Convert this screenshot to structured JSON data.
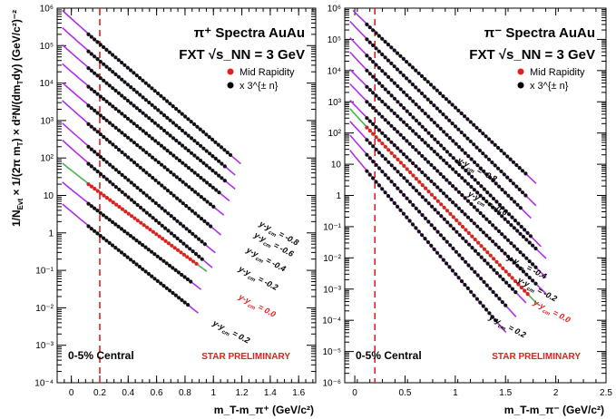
{
  "figure": {
    "ylabel_text": "1/N_Evt × 1/(2π m_T) × d²N/(dm_T dy)",
    "ylabel_unit": "(GeV/c²)⁻²",
    "dashed_line_color": "#e02020"
  },
  "chart_data": [
    {
      "type": "scatter",
      "title_line1": "π⁺ Spectra AuAu",
      "title_line2": "FXT √s_NN = 3 GeV",
      "xlabel": "m_T-m_π⁺ (GeV/c²)",
      "ylabel": "1/N_Evt × 1/(2π m_T) × d²N/(dm_T dy) (GeV/c²)⁻²",
      "xlim": [
        -0.1,
        1.72
      ],
      "ylim": [
        0.0001,
        1000000
      ],
      "yscale": "log",
      "x_ticks": [
        "0",
        "0.2",
        "0.4",
        "0.6",
        "0.8",
        "1",
        "1.2",
        "1.4",
        "1.6"
      ],
      "x_tick_values": [
        0,
        0.2,
        0.4,
        0.6,
        0.8,
        1.0,
        1.2,
        1.4,
        1.6
      ],
      "y_ticks": [
        "10⁻⁴",
        "10⁻³",
        "10⁻²",
        "10⁻¹",
        "1",
        "10",
        "10²",
        "10³",
        "10⁴",
        "10⁵",
        "10⁶"
      ],
      "y_tick_values": [
        0.0001,
        0.001,
        0.01,
        0.1,
        1,
        10,
        100,
        1000,
        10000,
        100000,
        1000000
      ],
      "dashed_x": 0.2,
      "legend": [
        {
          "label": "Mid Rapidity",
          "color": "#e02020"
        },
        {
          "label": "x 3^{± n}",
          "color": "#000000"
        }
      ],
      "annotation_central": "0-5% Central",
      "annotation_prelim": "STAR PRELIMINARY",
      "series": [
        {
          "label": "y-y_cm = -0.8",
          "mid": false,
          "x_start": 0.12,
          "x_end": 1.12,
          "y_start": 200000,
          "y_end": 120
        },
        {
          "label": "y-y_cm = -0.7",
          "mid": false,
          "x_start": 0.12,
          "x_end": 1.08,
          "y_start": 70000,
          "y_end": 60
        },
        {
          "label": "y-y_cm = -0.6",
          "mid": false,
          "x_start": 0.12,
          "x_end": 1.08,
          "y_start": 25000,
          "y_end": 25
        },
        {
          "label": "y-y_cm = -0.5",
          "mid": false,
          "x_start": 0.12,
          "x_end": 1.04,
          "y_start": 8000,
          "y_end": 12
        },
        {
          "label": "y-y_cm = -0.4",
          "mid": false,
          "x_start": 0.12,
          "x_end": 1.0,
          "y_start": 2500,
          "y_end": 5
        },
        {
          "label": "y-y_cm = -0.3",
          "mid": false,
          "x_start": 0.12,
          "x_end": 0.98,
          "y_start": 800,
          "y_end": 1.5
        },
        {
          "label": "y-y_cm = -0.2",
          "mid": false,
          "x_start": 0.12,
          "x_end": 0.94,
          "y_start": 200,
          "y_end": 0.5
        },
        {
          "label": "y-y_cm = -0.1",
          "mid": false,
          "x_start": 0.12,
          "x_end": 0.92,
          "y_start": 70,
          "y_end": 0.2
        },
        {
          "label": "y-y_cm = 0.0",
          "mid": true,
          "x_start": 0.12,
          "x_end": 0.88,
          "y_start": 20,
          "y_end": 0.15
        },
        {
          "label": "y-y_cm = 0.1",
          "mid": false,
          "x_start": 0.12,
          "x_end": 0.84,
          "y_start": 6,
          "y_end": 0.05
        },
        {
          "label": "y-y_cm = 0.2",
          "mid": false,
          "x_start": 0.12,
          "x_end": 0.82,
          "y_start": 1.5,
          "y_end": 0.012
        }
      ],
      "series_labels_shown": [
        {
          "text": "y-y",
          "sub": "cm",
          "val": " = -0.8",
          "red": false
        },
        {
          "text": "y-y",
          "sub": "cm",
          "val": " = -0.6",
          "red": false
        },
        {
          "text": "y-y",
          "sub": "cm",
          "val": " = -0.4",
          "red": false
        },
        {
          "text": "y-y",
          "sub": "cm",
          "val": " = -0.2",
          "red": false
        },
        {
          "text": "y-y",
          "sub": "cm",
          "val": " = 0.0",
          "red": true
        },
        {
          "text": "y-y",
          "sub": "cm",
          "val": " = 0.2",
          "red": false
        }
      ]
    },
    {
      "type": "scatter",
      "title_line1": "π⁻ Spectra AuAu",
      "title_line2": "FXT √s_NN = 3 GeV",
      "xlabel": "m_T-m_π⁻ (GeV/c²)",
      "ylabel": "",
      "xlim": [
        -0.1,
        2.5
      ],
      "ylim": [
        1e-06,
        1000000
      ],
      "yscale": "log",
      "x_ticks": [
        "0",
        "0.5",
        "1",
        "1.5",
        "2",
        "2.5"
      ],
      "x_tick_values": [
        0,
        0.5,
        1.0,
        1.5,
        2.0,
        2.5
      ],
      "y_ticks": [
        "10⁻⁶",
        "10⁻⁵",
        "10⁻⁴",
        "10⁻³",
        "10⁻²",
        "10⁻¹",
        "1",
        "10",
        "10²",
        "10³",
        "10⁴",
        "10⁵",
        "10⁶"
      ],
      "y_tick_values": [
        1e-06,
        1e-05,
        0.0001,
        0.001,
        0.01,
        0.1,
        1,
        10,
        100,
        1000,
        10000,
        100000,
        1000000
      ],
      "dashed_x": 0.2,
      "legend": [
        {
          "label": "Mid Rapidity",
          "color": "#e02020"
        },
        {
          "label": "x 3^{± n}",
          "color": "#000000"
        }
      ],
      "annotation_central": "0-5% Central",
      "annotation_prelim": "STAR PRELIMINARY",
      "series": [
        {
          "label": "y-y_cm = -0.8",
          "mid": false,
          "x_start": 0.12,
          "x_end": 1.7,
          "y_start": 300000,
          "y_end": 5
        },
        {
          "label": "y-y_cm = -0.7",
          "mid": false,
          "x_start": 0.12,
          "x_end": 1.7,
          "y_start": 100000,
          "y_end": 1
        },
        {
          "label": "y-y_cm = -0.6",
          "mid": false,
          "x_start": 0.12,
          "x_end": 1.65,
          "y_start": 30000,
          "y_end": 0.4
        },
        {
          "label": "y-y_cm = -0.5",
          "mid": false,
          "x_start": 0.12,
          "x_end": 1.75,
          "y_start": 10000,
          "y_end": 0.05
        },
        {
          "label": "y-y_cm = -0.4",
          "mid": false,
          "x_start": 0.12,
          "x_end": 1.8,
          "y_start": 3000,
          "y_end": 0.02
        },
        {
          "label": "y-y_cm = -0.3",
          "mid": false,
          "x_start": 0.12,
          "x_end": 1.8,
          "y_start": 1000,
          "y_end": 0.005
        },
        {
          "label": "y-y_cm = -0.2",
          "mid": false,
          "x_start": 0.12,
          "x_end": 1.8,
          "y_start": 300,
          "y_end": 0.0015
        },
        {
          "label": "y-y_cm = 0.0",
          "mid": true,
          "x_start": 0.12,
          "x_end": 1.72,
          "y_start": 150,
          "y_end": 0.0007
        },
        {
          "label": "y-y_cm = -0.1",
          "mid": false,
          "x_start": 0.12,
          "x_end": 1.6,
          "y_start": 60,
          "y_end": 0.0008
        },
        {
          "label": "y-y_cm = 0.1",
          "mid": false,
          "x_start": 0.12,
          "x_end": 1.5,
          "y_start": 20,
          "y_end": 0.0003
        },
        {
          "label": "y-y_cm = 0.2",
          "mid": false,
          "x_start": 0.12,
          "x_end": 1.4,
          "y_start": 6,
          "y_end": 0.0001
        }
      ],
      "series_labels_shown": [
        {
          "text": "y-y",
          "sub": "cm",
          "val": " = -0.8",
          "red": false
        },
        {
          "text": "y-y",
          "sub": "cm",
          "val": " = -0.6",
          "red": false
        },
        {
          "text": "y-y",
          "sub": "cm",
          "val": " = -0.4",
          "red": false
        },
        {
          "text": "y-y",
          "sub": "cm",
          "val": " = -0.2",
          "red": false
        },
        {
          "text": "y-y",
          "sub": "cm",
          "val": " = 0.0",
          "red": true
        },
        {
          "text": "y-y",
          "sub": "cm",
          "val": " = 0.2",
          "red": false
        }
      ]
    }
  ]
}
